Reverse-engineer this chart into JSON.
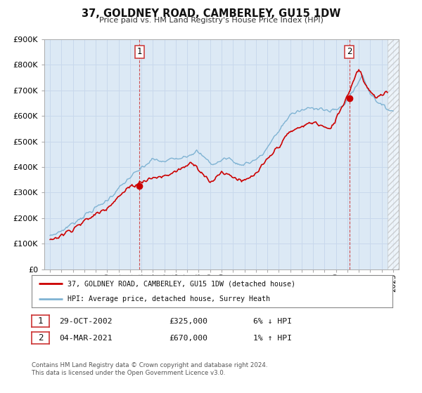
{
  "title": "37, GOLDNEY ROAD, CAMBERLEY, GU15 1DW",
  "subtitle": "Price paid vs. HM Land Registry's House Price Index (HPI)",
  "background_color": "#ffffff",
  "plot_bg_color": "#dce9f5",
  "grid_color": "#c8d8ec",
  "xmin": 1994.5,
  "xmax": 2025.5,
  "ymin": 0,
  "ymax": 900000,
  "yticks": [
    0,
    100000,
    200000,
    300000,
    400000,
    500000,
    600000,
    700000,
    800000,
    900000
  ],
  "ytick_labels": [
    "£0",
    "£100K",
    "£200K",
    "£300K",
    "£400K",
    "£500K",
    "£600K",
    "£700K",
    "£800K",
    "£900K"
  ],
  "xticks": [
    1995,
    1996,
    1997,
    1998,
    1999,
    2000,
    2001,
    2002,
    2003,
    2004,
    2005,
    2006,
    2007,
    2008,
    2009,
    2010,
    2011,
    2012,
    2013,
    2014,
    2015,
    2016,
    2017,
    2018,
    2019,
    2020,
    2021,
    2022,
    2023,
    2024,
    2025
  ],
  "sale1_x": 2002.83,
  "sale1_y": 325000,
  "sale1_label": "1",
  "sale2_x": 2021.17,
  "sale2_y": 670000,
  "sale2_label": "2",
  "red_line_color": "#cc0000",
  "blue_line_color": "#7fb3d3",
  "marker_color": "#cc0000",
  "vline_color": "#cc3333",
  "hatch_cutoff": 2024.5,
  "legend_label1": "37, GOLDNEY ROAD, CAMBERLEY, GU15 1DW (detached house)",
  "legend_label2": "HPI: Average price, detached house, Surrey Heath",
  "table_row1": [
    "1",
    "29-OCT-2002",
    "£325,000",
    "6% ↓ HPI"
  ],
  "table_row2": [
    "2",
    "04-MAR-2021",
    "£670,000",
    "1% ↑ HPI"
  ],
  "footnote1": "Contains HM Land Registry data © Crown copyright and database right 2024.",
  "footnote2": "This data is licensed under the Open Government Licence v3.0."
}
